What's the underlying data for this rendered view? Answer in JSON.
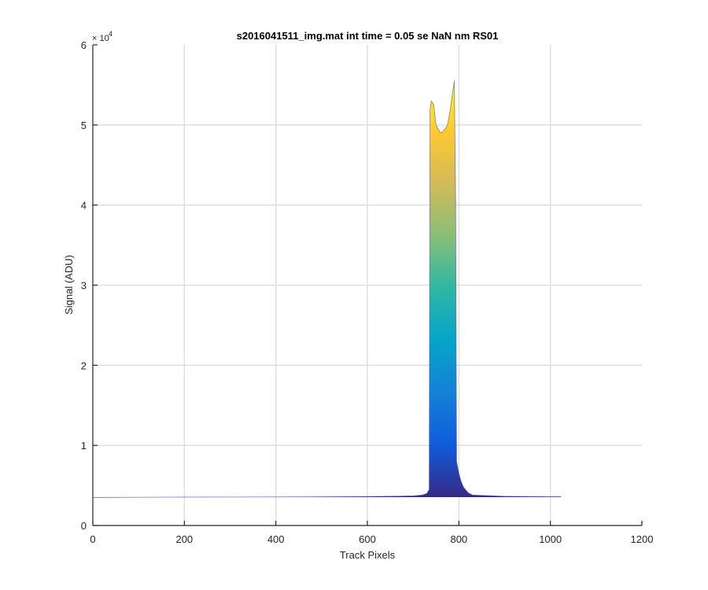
{
  "chart_data": {
    "type": "area",
    "title": "s2016041511_img.mat int time = 0.05 se  NaN nm RS01",
    "xlabel": "Track Pixels",
    "ylabel": "Signal (ADU)",
    "xlim": [
      0,
      1200
    ],
    "ylim": [
      0,
      60000
    ],
    "x_ticks": [
      0,
      200,
      400,
      600,
      800,
      1000,
      1200
    ],
    "x_tick_labels": [
      "0",
      "200",
      "400",
      "600",
      "800",
      "1000",
      "1200"
    ],
    "y_ticks": [
      0,
      10000,
      20000,
      30000,
      40000,
      50000,
      60000
    ],
    "y_tick_labels": [
      "0",
      "1",
      "2",
      "3",
      "4",
      "5",
      "6"
    ],
    "y_exponent_label": "× 10",
    "y_exponent_power": "4",
    "grid": true,
    "colormap": [
      "#352a87",
      "#0f5cdd",
      "#1481d6",
      "#06a4ca",
      "#2eb7a4",
      "#87bf77",
      "#d1bb59",
      "#fec832",
      "#f9fb0e"
    ],
    "baseline": 3600,
    "series": [
      {
        "x": [
          0,
          100,
          200,
          300,
          400,
          500,
          600,
          650,
          700,
          720,
          730,
          735,
          737,
          740,
          745,
          750,
          755,
          760,
          765,
          770,
          775,
          780,
          785,
          790,
          793,
          795,
          800,
          805,
          810,
          820,
          830,
          900,
          1000,
          1023
        ],
        "y": [
          3500,
          3520,
          3540,
          3550,
          3560,
          3580,
          3620,
          3650,
          3700,
          3800,
          4000,
          4500,
          52000,
          53000,
          52500,
          50000,
          49500,
          49000,
          49200,
          49500,
          50000,
          51500,
          53500,
          55500,
          40000,
          8000,
          6500,
          5500,
          4800,
          4100,
          3800,
          3650,
          3600,
          3600
        ]
      }
    ]
  }
}
